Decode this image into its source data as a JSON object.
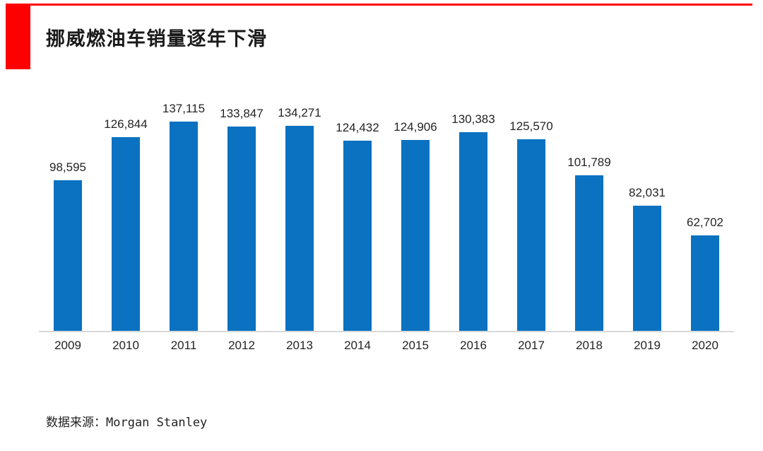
{
  "header": {
    "title": "挪威燃油车销量逐年下滑"
  },
  "footer": {
    "source": "数据来源：Morgan Stanley"
  },
  "colors": {
    "accent_red": "#fe0000",
    "bar_blue": "#0a72c1",
    "axis_gray": "#d9d9d9",
    "text_dark": "#242424"
  },
  "chart_data": {
    "type": "bar",
    "title": "挪威燃油车销量逐年下滑",
    "categories": [
      "2009",
      "2010",
      "2011",
      "2012",
      "2013",
      "2014",
      "2015",
      "2016",
      "2017",
      "2018",
      "2019",
      "2020"
    ],
    "values": [
      98595,
      126844,
      137115,
      133847,
      134271,
      124432,
      124906,
      130383,
      125570,
      101789,
      82031,
      62702
    ],
    "value_labels": [
      "98,595",
      "126,844",
      "137,115",
      "133,847",
      "134,271",
      "124,432",
      "124,906",
      "130,383",
      "125,570",
      "101,789",
      "82,031",
      "62,702"
    ],
    "xlabel": "",
    "ylabel": "",
    "ylim": [
      0,
      137115
    ],
    "grid": false,
    "legend": "none",
    "bar_color": "#0a72c1",
    "source": "数据来源：Morgan Stanley"
  }
}
